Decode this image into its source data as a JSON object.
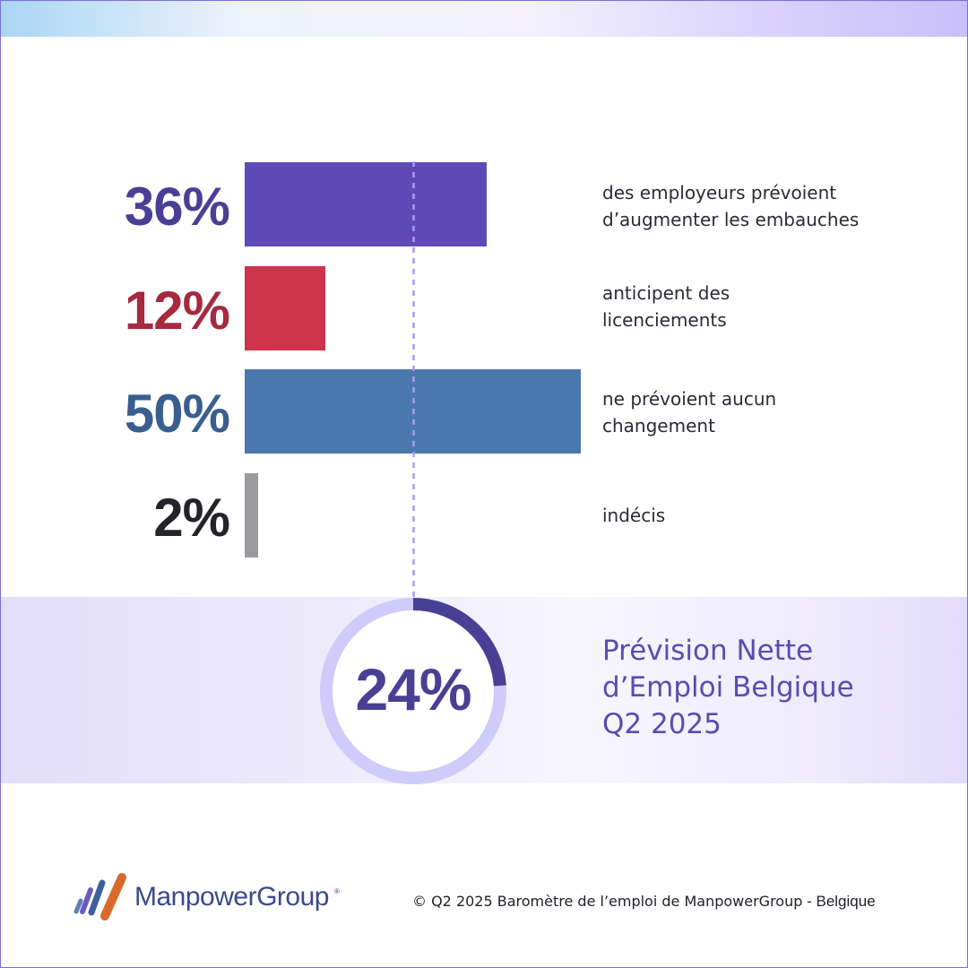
{
  "chart_data": {
    "type": "bar",
    "orientation": "horizontal",
    "items": [
      {
        "value": 36,
        "value_label": "36%",
        "description": [
          "des employeurs prévoient",
          "d’augmenter les embauches"
        ],
        "bar_color": "#5d4ab7",
        "label_color": "#4a3f95"
      },
      {
        "value": 12,
        "value_label": "12%",
        "description": [
          "anticipent des",
          "licenciements"
        ],
        "bar_color": "#cd334b",
        "label_color": "#a52a3e"
      },
      {
        "value": 50,
        "value_label": "50%",
        "description": [
          "ne prévoient aucun",
          "changement"
        ],
        "bar_color": "#4a78ad",
        "label_color": "#3a5e90"
      },
      {
        "value": 2,
        "value_label": "2%",
        "description": [
          "indécis"
        ],
        "bar_color": "#9b9b9f",
        "label_color": "#232329"
      }
    ],
    "xlim": [
      0,
      50
    ],
    "summary": {
      "value": 24,
      "value_label": "24%",
      "title_lines": [
        "Prévision Nette",
        "d’Emploi Belgique",
        "Q2 2025"
      ],
      "ring_color": "#d1cbfb",
      "ring_fill_color": "#4a3f95"
    }
  },
  "footer": {
    "brand": "ManpowerGroup",
    "brand_mark": "®",
    "copyright": "© Q2 2025 Baromètre de l’emploi de ManpowerGroup",
    "region": " - Belgique",
    "logo_icon": "manpowergroup-stripes-icon"
  },
  "colors": {
    "accent": "#5b4bb0",
    "frame": "#7b6fd6"
  }
}
